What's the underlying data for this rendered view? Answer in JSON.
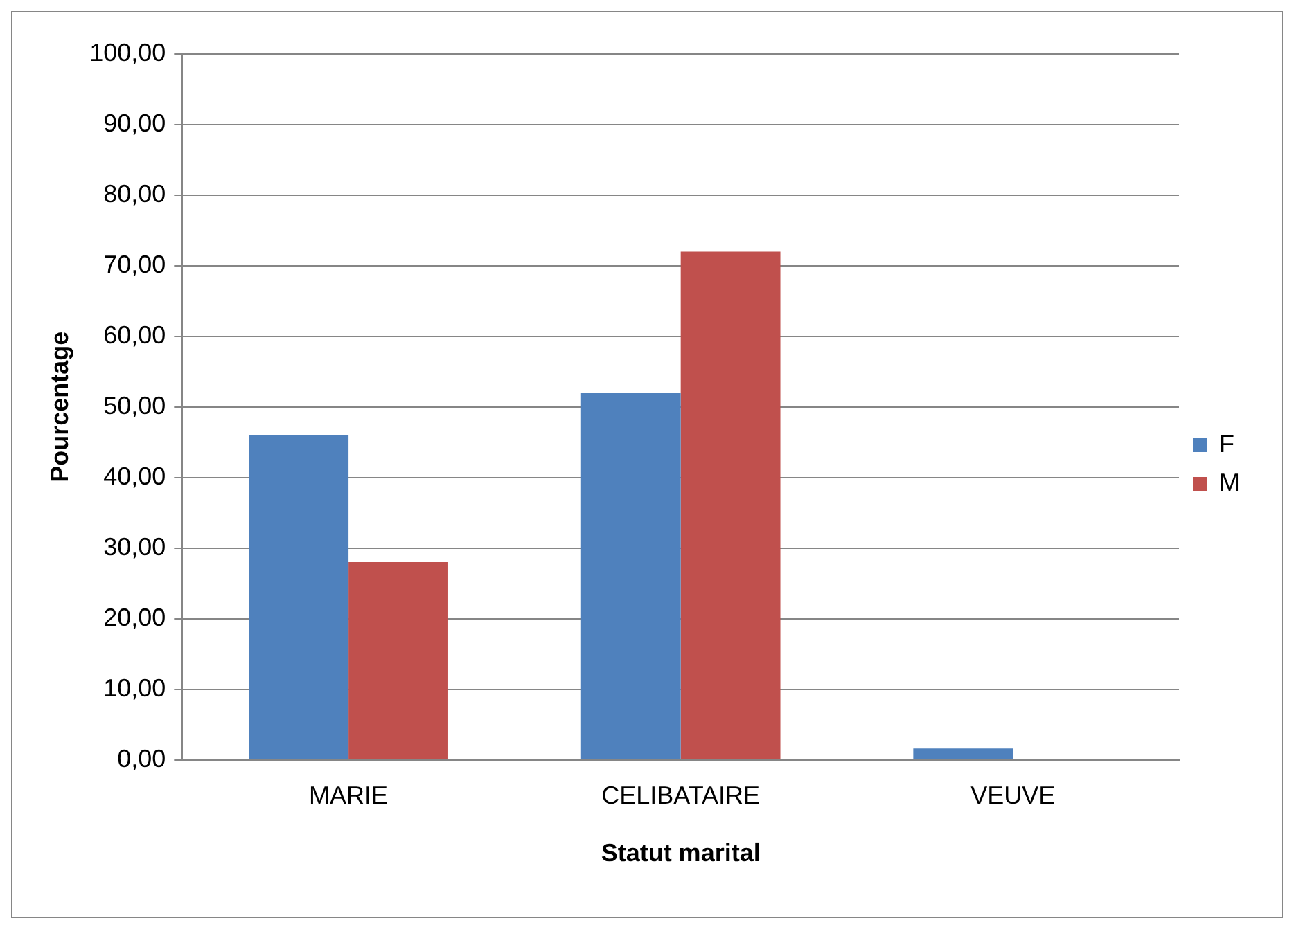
{
  "chart_data": {
    "type": "bar",
    "xlabel": "Statut marital",
    "ylabel": "Pourcentage",
    "categories": [
      "MARIE",
      "CELIBATAIRE",
      "VEUVE"
    ],
    "series": [
      {
        "name": "F",
        "color": "#4f81bd",
        "values": [
          46,
          52,
          1.6
        ]
      },
      {
        "name": "M",
        "color": "#c0504d",
        "values": [
          28,
          72,
          0
        ]
      }
    ],
    "ylim": [
      0,
      100
    ],
    "yticks": [
      {
        "value": 0,
        "label": "0,00"
      },
      {
        "value": 10,
        "label": "10,00"
      },
      {
        "value": 20,
        "label": "20,00"
      },
      {
        "value": 30,
        "label": "30,00"
      },
      {
        "value": 40,
        "label": "40,00"
      },
      {
        "value": 50,
        "label": "50,00"
      },
      {
        "value": 60,
        "label": "60,00"
      },
      {
        "value": 70,
        "label": "70,00"
      },
      {
        "value": 80,
        "label": "80,00"
      },
      {
        "value": 90,
        "label": "90,00"
      },
      {
        "value": 100,
        "label": "100,00"
      }
    ],
    "grid": "y",
    "legend": "right"
  }
}
